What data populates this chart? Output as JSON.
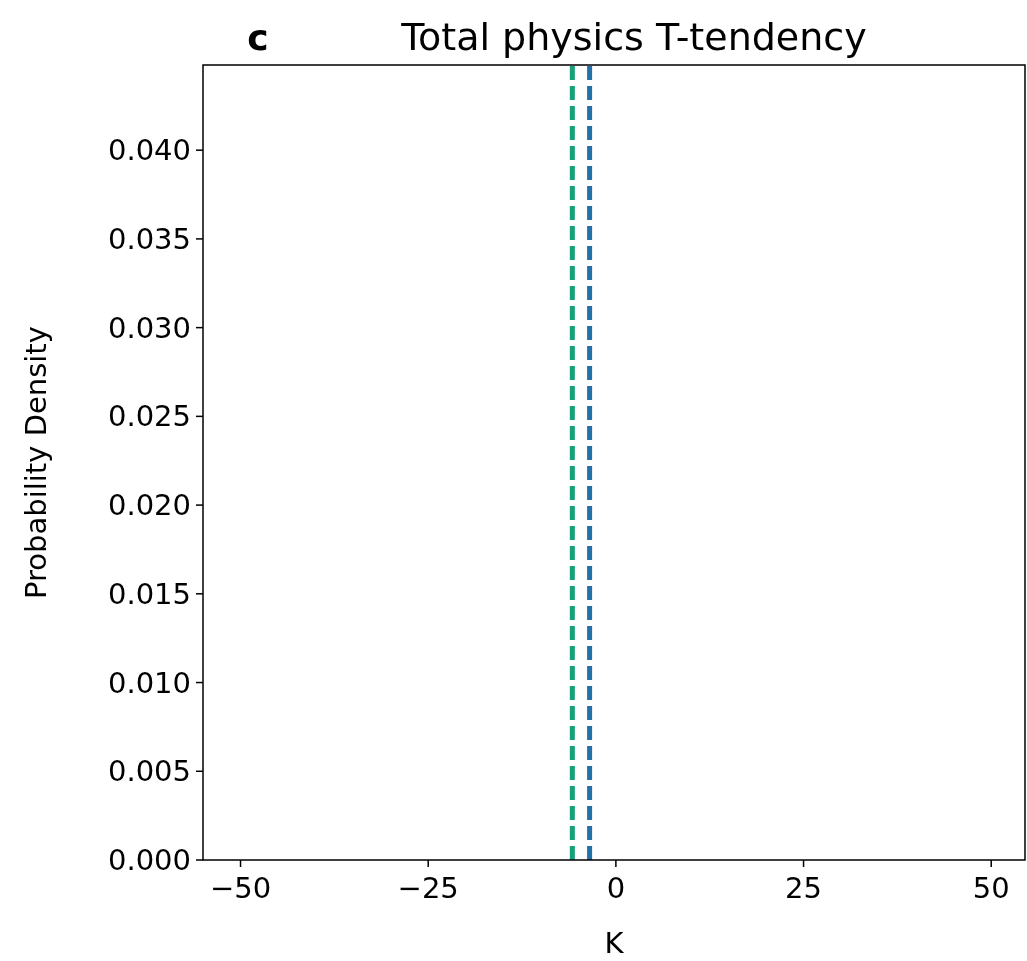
{
  "chart_data": {
    "type": "line",
    "title": "Total physics T-tendency",
    "xlabel": "K",
    "ylabel": "Probability Density",
    "annotations": [
      "c"
    ],
    "xlim": [
      -55,
      54.5
    ],
    "xticks": [
      -50,
      -25,
      0,
      25,
      50
    ],
    "ylim": [
      0,
      0.0448
    ],
    "yticks": [
      {
        "value": 0,
        "label": "0.000"
      },
      {
        "value": 0.005,
        "label": "0.005"
      },
      {
        "value": 0.01,
        "label": "0.010"
      },
      {
        "value": 0.015,
        "label": "0.015"
      },
      {
        "value": 0.02,
        "label": "0.020"
      },
      {
        "value": 0.025,
        "label": "0.025"
      },
      {
        "value": 0.03,
        "label": "0.030"
      },
      {
        "value": 0.035,
        "label": "0.035"
      },
      {
        "value": 0.04,
        "label": "0.040"
      }
    ],
    "ref_lines": [
      {
        "axis": "x",
        "value": -5.8,
        "color": "#17a07a",
        "line_style": "dashed"
      },
      {
        "axis": "x",
        "value": -3.5,
        "color": "#2271a8",
        "line_style": "dashed"
      }
    ]
  }
}
